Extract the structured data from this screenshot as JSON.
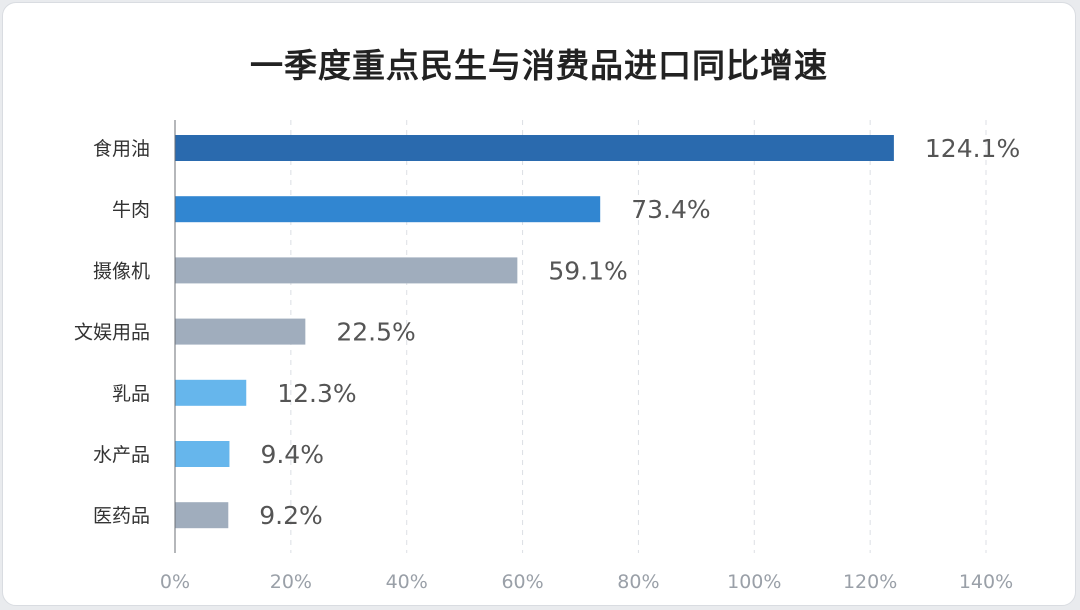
{
  "chart_data": {
    "type": "bar",
    "orientation": "horizontal",
    "title": "一季度重点民生与消费品进口同比增速",
    "categories": [
      "食用油",
      "牛肉",
      "摄像机",
      "文娱用品",
      "乳品",
      "水产品",
      "医药品"
    ],
    "values": [
      124.1,
      73.4,
      59.1,
      22.5,
      12.3,
      9.4,
      9.2
    ],
    "value_labels": [
      "124.1%",
      "73.4%",
      "59.1%",
      "22.5%",
      "12.3%",
      "9.4%",
      "9.2%"
    ],
    "bar_colors": [
      "#2a6aae",
      "#3186d1",
      "#a0adbd",
      "#a0adbd",
      "#66b6ec",
      "#66b6ec",
      "#a0adbd"
    ],
    "xlim": [
      0,
      140
    ],
    "xticks": [
      0,
      20,
      40,
      60,
      80,
      100,
      120,
      140
    ],
    "xtick_labels": [
      "0%",
      "20%",
      "40%",
      "60%",
      "80%",
      "100%",
      "120%",
      "140%"
    ],
    "grid": "vertical dashed",
    "xlabel": "",
    "ylabel": ""
  }
}
